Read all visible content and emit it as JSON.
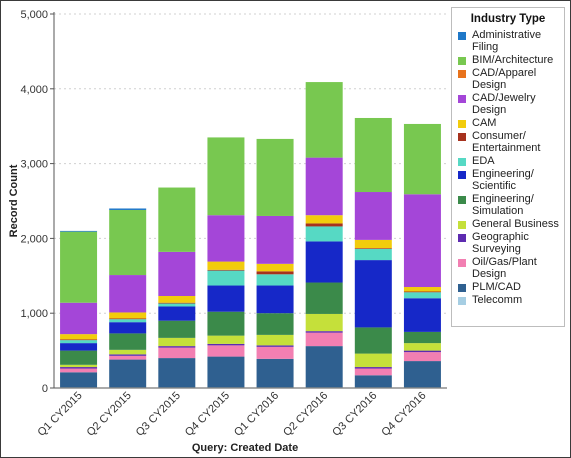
{
  "chart_data": {
    "type": "bar",
    "stacked": true,
    "xlabel": "Query: Created Date",
    "ylabel": "Record Count",
    "ylim": [
      0,
      5000
    ],
    "yticks": [
      0,
      1000,
      2000,
      3000,
      4000,
      5000
    ],
    "ytick_labels": [
      "0",
      "1,000",
      "2,000",
      "3,000",
      "4,000",
      "5,000"
    ],
    "grid": "horizontal dotted",
    "legend_position": "right",
    "legend_title": "Industry Type",
    "categories": [
      "Q1 CY2015",
      "Q2 CY2015",
      "Q3 CY2015",
      "Q4 CY2015",
      "Q1 CY2016",
      "Q2 CY2016",
      "Q3 CY2016",
      "Q4 CY2016"
    ],
    "series": [
      {
        "name": "Telecomm",
        "color": "#a6cee3",
        "values": [
          10,
          10,
          10,
          10,
          10,
          10,
          10,
          10
        ]
      },
      {
        "name": "PLM/CAD",
        "color": "#2f6090",
        "values": [
          200,
          370,
          390,
          410,
          380,
          550,
          160,
          350
        ]
      },
      {
        "name": "Oil/Gas/Plant Design",
        "color": "#f27fb2",
        "values": [
          50,
          50,
          140,
          150,
          160,
          180,
          90,
          120
        ]
      },
      {
        "name": "Geographic Surveying",
        "color": "#5d2bb0",
        "values": [
          20,
          20,
          20,
          20,
          20,
          20,
          20,
          20
        ]
      },
      {
        "name": "General Business",
        "color": "#c5e03a",
        "values": [
          30,
          60,
          110,
          110,
          140,
          230,
          180,
          100
        ]
      },
      {
        "name": "Engineering/ Simulation",
        "color": "#3b8a4a",
        "values": [
          190,
          220,
          230,
          320,
          290,
          420,
          350,
          150
        ]
      },
      {
        "name": "Engineering/ Scientific",
        "color": "#1628c8",
        "values": [
          100,
          150,
          190,
          350,
          370,
          550,
          900,
          450
        ]
      },
      {
        "name": "EDA",
        "color": "#56d9c4",
        "values": [
          40,
          40,
          40,
          200,
          150,
          200,
          150,
          80
        ]
      },
      {
        "name": "Consumer/ Entertainment",
        "color": "#a6321e",
        "values": [
          10,
          10,
          10,
          10,
          40,
          40,
          10,
          10
        ]
      },
      {
        "name": "CAM",
        "color": "#f2cc0c",
        "values": [
          70,
          80,
          90,
          110,
          100,
          110,
          110,
          60
        ]
      },
      {
        "name": "CAD/Jewelry Design",
        "color": "#a446d8",
        "values": [
          420,
          500,
          590,
          620,
          640,
          770,
          640,
          1240
        ]
      },
      {
        "name": "CAD/Apparel Design",
        "color": "#e8731c",
        "values": [
          0,
          0,
          0,
          0,
          0,
          0,
          0,
          0
        ]
      },
      {
        "name": "BIM/Architecture",
        "color": "#78c850",
        "values": [
          950,
          870,
          860,
          1040,
          1030,
          1010,
          990,
          940
        ]
      },
      {
        "name": "Administrative Filing",
        "color": "#1f78c8",
        "values": [
          10,
          20,
          0,
          0,
          0,
          0,
          0,
          0
        ]
      }
    ],
    "legend_order": [
      "Administrative Filing",
      "BIM/Architecture",
      "CAD/Apparel Design",
      "CAD/Jewelry Design",
      "CAM",
      "Consumer/ Entertainment",
      "EDA",
      "Engineering/ Scientific",
      "Engineering/ Simulation",
      "General Business",
      "Geographic Surveying",
      "Oil/Gas/Plant Design",
      "PLM/CAD",
      "Telecomm"
    ],
    "legend_labels": {
      "Administrative Filing": "Administrative\nFiling",
      "BIM/Architecture": "BIM/Architecture",
      "CAD/Apparel Design": "CAD/Apparel\nDesign",
      "CAD/Jewelry Design": "CAD/Jewelry\nDesign",
      "CAM": "CAM",
      "Consumer/ Entertainment": "Consumer/\nEntertainment",
      "EDA": "EDA",
      "Engineering/ Scientific": "Engineering/\nScientific",
      "Engineering/ Simulation": "Engineering/\nSimulation",
      "General Business": "General Business",
      "Geographic Surveying": "Geographic\nSurveying",
      "Oil/Gas/Plant Design": "Oil/Gas/Plant\nDesign",
      "PLM/CAD": "PLM/CAD",
      "Telecomm": "Telecomm"
    }
  }
}
